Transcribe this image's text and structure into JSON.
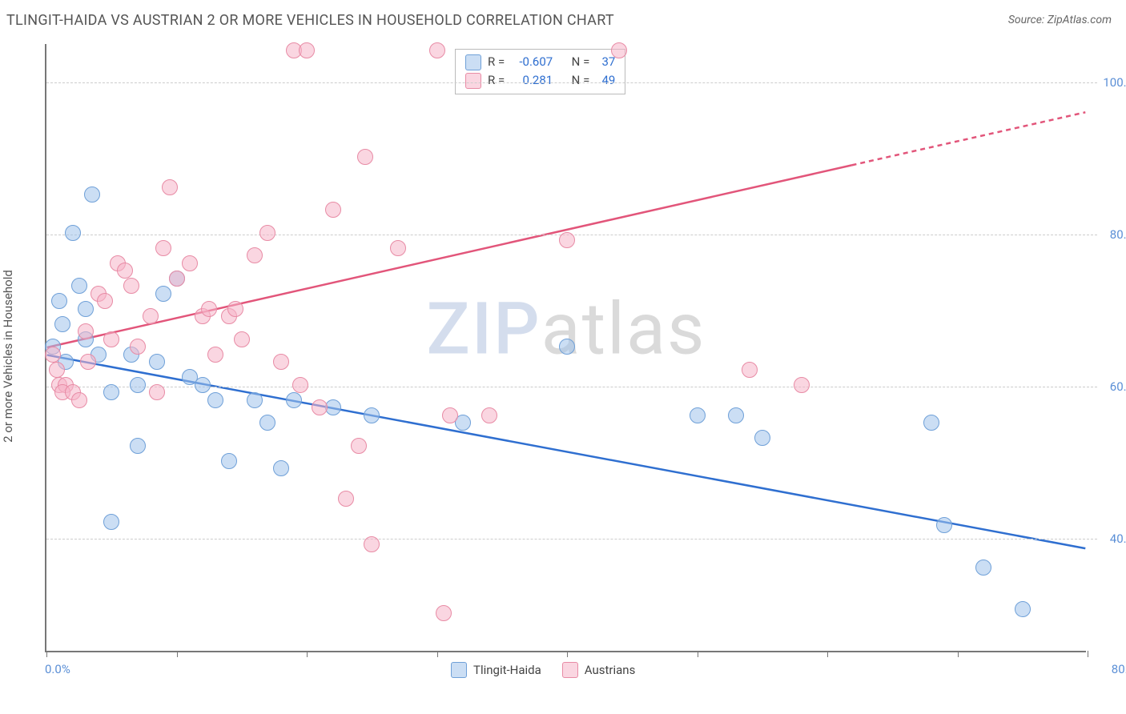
{
  "title": "TLINGIT-HAIDA VS AUSTRIAN 2 OR MORE VEHICLES IN HOUSEHOLD CORRELATION CHART",
  "source": "Source: ZipAtlas.com",
  "ylabel": "2 or more Vehicles in Household",
  "watermark_a": "ZIP",
  "watermark_b": "atlas",
  "chart": {
    "type": "scatter",
    "background_color": "#ffffff",
    "grid_color": "#cccccc",
    "grid_dash": true,
    "axis_color": "#777777",
    "xlim": [
      0,
      80
    ],
    "ylim": [
      25,
      105
    ],
    "x_tick_positions": [
      0,
      10,
      20,
      30,
      40,
      50,
      60,
      70,
      80
    ],
    "x_tick_labels_shown": {
      "0": "0.0%",
      "80": "80.0%"
    },
    "y_gridlines": [
      40,
      60,
      80,
      100
    ],
    "y_tick_labels": {
      "40": "40.0%",
      "60": "60.0%",
      "80": "80.0%",
      "100": "100.0%"
    },
    "tick_label_color": "#5b8fd6",
    "tick_label_fontsize": 15,
    "ylabel_fontsize": 15,
    "title_fontsize": 18,
    "point_radius": 10,
    "point_stroke_width": 1.5,
    "trend_line_width": 2.5
  },
  "series": [
    {
      "name": "Tlingit-Haida",
      "fill": "rgba(160,195,235,0.55)",
      "stroke": "#6fa0d8",
      "trend_color": "#2f6fd0",
      "R": "-0.607",
      "N": "37",
      "trend": {
        "x1": 0,
        "y1": 64,
        "x2": 80,
        "y2": 38.5,
        "dash_from_x": null
      },
      "points": [
        [
          0.5,
          65
        ],
        [
          1,
          71
        ],
        [
          1.2,
          68
        ],
        [
          2,
          80
        ],
        [
          3.5,
          85
        ],
        [
          2.5,
          73
        ],
        [
          3,
          70
        ],
        [
          4,
          64
        ],
        [
          5,
          59
        ],
        [
          6.5,
          64
        ],
        [
          7,
          60
        ],
        [
          7,
          52
        ],
        [
          8.5,
          63
        ],
        [
          9,
          72
        ],
        [
          10,
          74
        ],
        [
          11,
          61
        ],
        [
          5,
          42
        ],
        [
          13,
          58
        ],
        [
          12,
          60
        ],
        [
          14,
          50
        ],
        [
          16,
          58
        ],
        [
          17,
          55
        ],
        [
          18,
          49
        ],
        [
          19,
          58
        ],
        [
          22,
          57
        ],
        [
          25,
          56
        ],
        [
          32,
          55
        ],
        [
          40,
          65
        ],
        [
          50,
          56
        ],
        [
          53,
          56
        ],
        [
          55,
          53
        ],
        [
          68,
          55
        ],
        [
          69,
          41.5
        ],
        [
          72,
          36
        ],
        [
          75,
          30.5
        ],
        [
          1.5,
          63
        ],
        [
          3,
          66
        ]
      ]
    },
    {
      "name": "Austrians",
      "fill": "rgba(245,180,200,0.55)",
      "stroke": "#e88ba5",
      "trend_color": "#e2557a",
      "R": "0.281",
      "N": "49",
      "trend": {
        "x1": 0,
        "y1": 65,
        "x2": 80,
        "y2": 96,
        "dash_from_x": 62
      },
      "points": [
        [
          0.5,
          64
        ],
        [
          0.8,
          62
        ],
        [
          1,
          60
        ],
        [
          1.5,
          60
        ],
        [
          1.2,
          59
        ],
        [
          2,
          59
        ],
        [
          2.5,
          58
        ],
        [
          3,
          67
        ],
        [
          3.2,
          63
        ],
        [
          4,
          72
        ],
        [
          4.5,
          71
        ],
        [
          5,
          66
        ],
        [
          5.5,
          76
        ],
        [
          6,
          75
        ],
        [
          6.5,
          73
        ],
        [
          7,
          65
        ],
        [
          8,
          69
        ],
        [
          8.5,
          59
        ],
        [
          9,
          78
        ],
        [
          9.5,
          86
        ],
        [
          10,
          74
        ],
        [
          11,
          76
        ],
        [
          12,
          69
        ],
        [
          12.5,
          70
        ],
        [
          13,
          64
        ],
        [
          14,
          69
        ],
        [
          14.5,
          70
        ],
        [
          15,
          66
        ],
        [
          16,
          77
        ],
        [
          17,
          80
        ],
        [
          18,
          63
        ],
        [
          19,
          104
        ],
        [
          19.5,
          60
        ],
        [
          20,
          104
        ],
        [
          21,
          57
        ],
        [
          22,
          83
        ],
        [
          23,
          45
        ],
        [
          24,
          52
        ],
        [
          24.5,
          90
        ],
        [
          25,
          39
        ],
        [
          27,
          78
        ],
        [
          30,
          104
        ],
        [
          31,
          56
        ],
        [
          30.5,
          30
        ],
        [
          34,
          56
        ],
        [
          40,
          79
        ],
        [
          44,
          104
        ],
        [
          58,
          60
        ],
        [
          54,
          62
        ]
      ]
    }
  ],
  "legend_labels": {
    "R": "R =",
    "N": "N ="
  }
}
